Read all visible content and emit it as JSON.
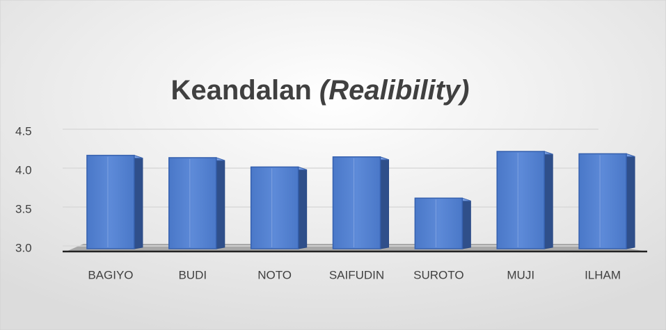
{
  "chart_data": {
    "type": "bar3d",
    "title": "Keandalan",
    "title_emphasis": "(Realibility)",
    "categories": [
      "BAGIYO",
      "BUDI",
      "NOTO",
      "SAIFUDIN",
      "SUROTO",
      "MUJI",
      "ILHAM"
    ],
    "values": [
      4.2,
      4.17,
      4.05,
      4.18,
      3.65,
      4.25,
      4.22
    ],
    "color": "#4f7fd0",
    "ylim": [
      3,
      4.5
    ],
    "yticks": [
      {
        "value": 3,
        "label": "3.0"
      },
      3.5,
      {
        "value": 4,
        "label": "4.0"
      },
      4.5
    ],
    "grid": true
  }
}
